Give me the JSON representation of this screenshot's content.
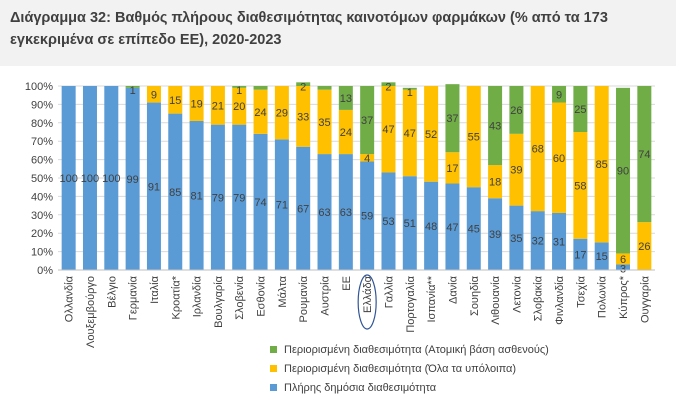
{
  "chart_data": {
    "type": "bar",
    "stacked": true,
    "title": "Διάγραμμα 32: Βαθμός πλήρους διαθεσιμότητας καινοτόμων φαρμάκων (% από τα 173 εγκεκριμένα σε επίπεδο ΕΕ), 2020-2023",
    "ylim": [
      0,
      100
    ],
    "yticks": [
      "0%",
      "10%",
      "20%",
      "30%",
      "40%",
      "50%",
      "60%",
      "70%",
      "80%",
      "90%",
      "100%"
    ],
    "highlighted_category": "Ελλάδα",
    "categories": [
      "Ολλανδία",
      "Λουξεμβούργο",
      "Βέλγιο",
      "Γερμανία",
      "Ιταλία",
      "Κροατία*",
      "Ιρλανδία",
      "Βουλγαρία",
      "Σλοβενία",
      "Εσθονία",
      "Μάλτα",
      "Ρουμανία",
      "Αυστρία",
      "ΕΕ",
      "Ελλάδα",
      "Γαλλία",
      "Πορτογαλία",
      "Ισπανία**",
      "Δανία",
      "Σουηδία",
      "Λιθουανία",
      "Λετονία",
      "Σλοβακία",
      "Φινλανδία",
      "Τσεχία",
      "Πολωνία",
      "Κύπρος*",
      "Ουγγαρία"
    ],
    "series": [
      {
        "name": "Πλήρης δημόσια διαθεσιμότητα",
        "color": "#5b9bd5",
        "values": [
          100,
          100,
          100,
          99,
          91,
          85,
          81,
          79,
          79,
          74,
          71,
          67,
          63,
          63,
          59,
          53,
          51,
          48,
          47,
          45,
          39,
          35,
          32,
          31,
          17,
          15,
          3,
          0
        ],
        "labels": [
          "100",
          "100",
          "100",
          "99",
          "91",
          "85",
          "81",
          "79",
          "79",
          "74",
          "71",
          "67",
          "63",
          "63",
          "59",
          "53",
          "51",
          "48",
          "47",
          "45",
          "39",
          "35",
          "32",
          "31",
          "17",
          "15",
          "3",
          ""
        ]
      },
      {
        "name": "Περιορισμένη διαθεσιμότητα (Όλα τα υπόλοιπα)",
        "color": "#ffc000",
        "values": [
          0,
          0,
          0,
          0,
          9,
          15,
          19,
          21,
          20,
          24,
          29,
          33,
          35,
          24,
          4,
          47,
          47,
          52,
          17,
          55,
          18,
          39,
          68,
          60,
          58,
          85,
          6,
          26
        ],
        "labels": [
          "",
          "",
          "",
          "",
          "9",
          "15",
          "19",
          "21",
          "20",
          "24",
          "29",
          "33",
          "35",
          "24",
          "4",
          "47",
          "47",
          "52",
          "17",
          "55",
          "18",
          "39",
          "68",
          "60",
          "58",
          "85",
          "6",
          "26"
        ]
      },
      {
        "name": "Περιορισμένη διαθεσιμότητα (Ατομική βάση ασθενούς)",
        "color": "#70ad47",
        "values": [
          0,
          0,
          0,
          1,
          0,
          0,
          0,
          0,
          1,
          2,
          0,
          2,
          2,
          13,
          37,
          2,
          1,
          0,
          37,
          0,
          43,
          26,
          0,
          9,
          25,
          0,
          90,
          74
        ],
        "labels": [
          "",
          "",
          "",
          "1",
          "",
          "",
          "",
          "",
          "1",
          "",
          "",
          "2",
          "",
          "13",
          "37",
          "2",
          "1",
          "",
          "37",
          "",
          "43",
          "26",
          "",
          "9",
          "25",
          "",
          "90",
          "74"
        ]
      }
    ],
    "legend": [
      {
        "label": "Περιορισμένη διαθεσιμότητα (Ατομική βάση ασθενούς)",
        "color": "#70ad47"
      },
      {
        "label": "Περιορισμένη διαθεσιμότητα (Όλα τα υπόλοιπα)",
        "color": "#ffc000"
      },
      {
        "label": "Πλήρης δημόσια διαθεσιμότητα",
        "color": "#5b9bd5"
      }
    ]
  }
}
